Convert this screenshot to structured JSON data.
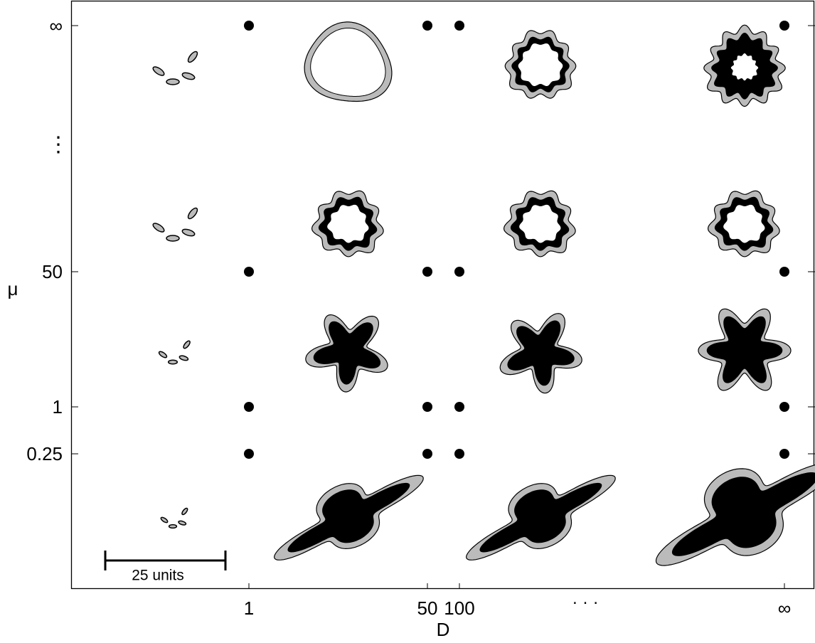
{
  "chart_data": {
    "type": "parameter-grid",
    "x_label": "D",
    "y_label": "μ",
    "x_categories": [
      "1",
      "50",
      "100",
      "∞"
    ],
    "x_ellipsis": "· · ·",
    "y_categories": [
      "0.25",
      "1",
      "50",
      "∞"
    ],
    "y_ellipsis": "⋮",
    "scale_bar_label": "25 units"
  }
}
